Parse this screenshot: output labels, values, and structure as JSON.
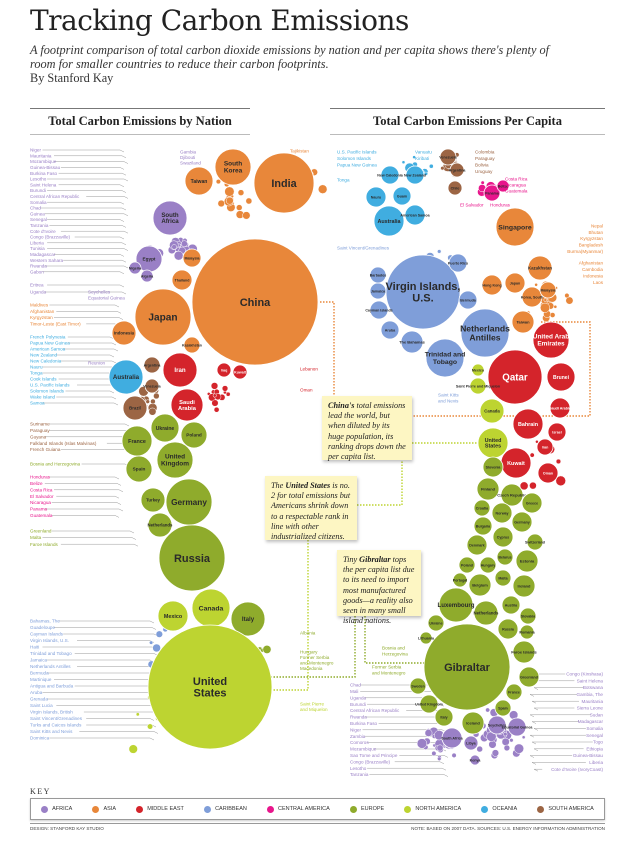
{
  "header": {
    "title": "Tracking Carbon Emissions",
    "subtitle": "A footprint comparison of total carbon dioxide emissions by nation and per capita shows there's plenty of room for smaller countries to reduce their carbon footprints.",
    "byline": "By Stanford Kay"
  },
  "sections": {
    "left_title": "Total Carbon Emissions by Nation",
    "right_title": "Total Carbon Emissions Per Capita"
  },
  "regions": {
    "africa": {
      "label": "Africa",
      "color": "#9a80c6"
    },
    "asia": {
      "label": "Asia",
      "color": "#e8873a"
    },
    "middle_east": {
      "label": "Middle East",
      "color": "#d4242b"
    },
    "caribbean": {
      "label": "Caribbean",
      "color": "#7f9ed9"
    },
    "central_america": {
      "label": "Central America",
      "color": "#e8168c"
    },
    "europe": {
      "label": "Europe",
      "color": "#8fab2c"
    },
    "north_america": {
      "label": "North America",
      "color": "#bdd431"
    },
    "oceania": {
      "label": "Oceania",
      "color": "#40ade0"
    },
    "south_america": {
      "label": "South America",
      "color": "#9c6544"
    }
  },
  "left_circles": [
    {
      "name": "China",
      "region": "asia"
    },
    {
      "name": "India",
      "region": "asia"
    },
    {
      "name": "South Korea",
      "region": "asia"
    },
    {
      "name": "Taiwan",
      "region": "asia"
    },
    {
      "name": "Japan",
      "region": "asia"
    },
    {
      "name": "Indonesia",
      "region": "asia"
    },
    {
      "name": "Thailand",
      "region": "asia"
    },
    {
      "name": "Malaysia",
      "region": "asia"
    },
    {
      "name": "Kazakhstan",
      "region": "asia"
    },
    {
      "name": "South Africa",
      "region": "africa"
    },
    {
      "name": "Egypt",
      "region": "africa"
    },
    {
      "name": "Nigeria",
      "region": "africa"
    },
    {
      "name": "Algeria",
      "region": "africa"
    },
    {
      "name": "Iran",
      "region": "middle_east"
    },
    {
      "name": "Saudi Arabia",
      "region": "middle_east"
    },
    {
      "name": "Iraq",
      "region": "middle_east"
    },
    {
      "name": "Kuwait",
      "region": "middle_east"
    },
    {
      "name": "Australia",
      "region": "oceania"
    },
    {
      "name": "Brazil",
      "region": "south_america"
    },
    {
      "name": "Argentina",
      "region": "south_america"
    },
    {
      "name": "Venezuela",
      "region": "south_america"
    },
    {
      "name": "Ukraine",
      "region": "europe"
    },
    {
      "name": "France",
      "region": "europe"
    },
    {
      "name": "Poland",
      "region": "europe"
    },
    {
      "name": "United Kingdom",
      "region": "europe"
    },
    {
      "name": "Spain",
      "region": "europe"
    },
    {
      "name": "Turkey",
      "region": "europe"
    },
    {
      "name": "Germany",
      "region": "europe"
    },
    {
      "name": "Netherlands",
      "region": "europe"
    },
    {
      "name": "Russia",
      "region": "europe"
    },
    {
      "name": "Italy",
      "region": "europe"
    },
    {
      "name": "Canada",
      "region": "north_america"
    },
    {
      "name": "Mexico",
      "region": "north_america"
    },
    {
      "name": "United States",
      "region": "north_america"
    }
  ],
  "right_circles": [
    {
      "name": "Virgin Islands, U.S.",
      "region": "caribbean"
    },
    {
      "name": "Netherlands Antilles",
      "region": "caribbean"
    },
    {
      "name": "Trinidad and Tobago",
      "region": "caribbean"
    },
    {
      "name": "The Bahamas",
      "region": "caribbean"
    },
    {
      "name": "Aruba",
      "region": "caribbean"
    },
    {
      "name": "Bermuda",
      "region": "caribbean"
    },
    {
      "name": "Puerto Rico",
      "region": "caribbean"
    },
    {
      "name": "Cayman Islands",
      "region": "caribbean"
    },
    {
      "name": "Jamaica",
      "region": "caribbean"
    },
    {
      "name": "Barbados",
      "region": "caribbean"
    },
    {
      "name": "Qatar",
      "region": "middle_east"
    },
    {
      "name": "United Arab Emirates",
      "region": "middle_east"
    },
    {
      "name": "Brunei",
      "region": "middle_east"
    },
    {
      "name": "Saudi Arabia",
      "region": "middle_east"
    },
    {
      "name": "Bahrain",
      "region": "middle_east"
    },
    {
      "name": "Kuwait",
      "region": "middle_east"
    },
    {
      "name": "Israel",
      "region": "middle_east"
    },
    {
      "name": "Oman",
      "region": "middle_east"
    },
    {
      "name": "Iran",
      "region": "middle_east"
    },
    {
      "name": "Singapore",
      "region": "asia"
    },
    {
      "name": "Kazakhstan",
      "region": "asia"
    },
    {
      "name": "Japan",
      "region": "asia"
    },
    {
      "name": "Hong Kong",
      "region": "asia"
    },
    {
      "name": "Taiwan",
      "region": "asia"
    },
    {
      "name": "Korea, South",
      "region": "asia"
    },
    {
      "name": "Malaysia",
      "region": "asia"
    },
    {
      "name": "Australia",
      "region": "oceania"
    },
    {
      "name": "Nauru",
      "region": "oceania"
    },
    {
      "name": "Guam",
      "region": "oceania"
    },
    {
      "name": "New Caledonia",
      "region": "oceania"
    },
    {
      "name": "New Zealand",
      "region": "oceania"
    },
    {
      "name": "American Samoa",
      "region": "oceania"
    },
    {
      "name": "Venezuela",
      "region": "south_america"
    },
    {
      "name": "Chile",
      "region": "south_america"
    },
    {
      "name": "Argentina",
      "region": "south_america"
    },
    {
      "name": "Panama",
      "region": "central_america"
    },
    {
      "name": "Belize",
      "region": "central_america"
    },
    {
      "name": "Canada",
      "region": "north_america"
    },
    {
      "name": "United States",
      "region": "north_america"
    },
    {
      "name": "Saint Pierre and Miquelon",
      "region": "north_america"
    },
    {
      "name": "Mexico",
      "region": "north_america"
    },
    {
      "name": "Gibraltar",
      "region": "europe"
    },
    {
      "name": "Luxembourg",
      "region": "europe"
    },
    {
      "name": "Slovenia",
      "region": "europe"
    },
    {
      "name": "Finland",
      "region": "europe"
    },
    {
      "name": "Czech Republic",
      "region": "europe"
    },
    {
      "name": "Greece",
      "region": "europe"
    },
    {
      "name": "Norway",
      "region": "europe"
    },
    {
      "name": "Croatia",
      "region": "europe"
    },
    {
      "name": "Germany",
      "region": "europe"
    },
    {
      "name": "Bulgaria",
      "region": "europe"
    },
    {
      "name": "Cyprus",
      "region": "europe"
    },
    {
      "name": "Denmark",
      "region": "europe"
    },
    {
      "name": "Switzerland",
      "region": "europe"
    },
    {
      "name": "Estonia",
      "region": "europe"
    },
    {
      "name": "Belarus",
      "region": "europe"
    },
    {
      "name": "Poland",
      "region": "europe"
    },
    {
      "name": "Hungary",
      "region": "europe"
    },
    {
      "name": "Portugal",
      "region": "europe"
    },
    {
      "name": "Belgium",
      "region": "europe"
    },
    {
      "name": "Malta",
      "region": "europe"
    },
    {
      "name": "Ireland",
      "region": "europe"
    },
    {
      "name": "Netherlands",
      "region": "europe"
    },
    {
      "name": "Austria",
      "region": "europe"
    },
    {
      "name": "Slovakia",
      "region": "europe"
    },
    {
      "name": "Russia",
      "region": "europe"
    },
    {
      "name": "Romania",
      "region": "europe"
    },
    {
      "name": "Ukraine",
      "region": "europe"
    },
    {
      "name": "Faroe Islands",
      "region": "europe"
    },
    {
      "name": "Greenland",
      "region": "europe"
    },
    {
      "name": "Sweden",
      "region": "europe"
    },
    {
      "name": "Lithuania",
      "region": "europe"
    },
    {
      "name": "France",
      "region": "europe"
    },
    {
      "name": "Spain",
      "region": "europe"
    },
    {
      "name": "United Kingdom",
      "region": "europe"
    },
    {
      "name": "Italy",
      "region": "europe"
    },
    {
      "name": "Iceland",
      "region": "europe"
    },
    {
      "name": "South Africa",
      "region": "africa"
    },
    {
      "name": "Seychelles",
      "region": "africa"
    },
    {
      "name": "Equatorial Guinea",
      "region": "africa"
    },
    {
      "name": "Libya",
      "region": "africa"
    },
    {
      "name": "Kenya",
      "region": "africa"
    }
  ],
  "label_lists": [
    {
      "region": "africa",
      "items": [
        "Niger",
        "Mauritania",
        "Mozambique",
        "Guinea-Bissau",
        "Burkina Faso",
        "Lesotho",
        "Saint Helena",
        "Burundi",
        "Central African Republic",
        "Somalia",
        "Chad",
        "Guinea",
        "Senegal",
        "Tanzania",
        "Cote d'Ivoire",
        "Congo (Brazzaville)",
        "Liberia",
        "Tunisia",
        "Madagascar",
        "Western Sahara",
        "Rwanda",
        "Gabon"
      ]
    },
    {
      "region": "africa",
      "items": [
        "Eritrea",
        "Uganda"
      ]
    },
    {
      "region": "asia",
      "items": [
        "Maldives",
        "Afghanistan",
        "Kyrgyzstan",
        "Timor-Leste (East Timor)"
      ]
    },
    {
      "region": "oceania",
      "items": [
        "French Polynesia",
        "Papua New Guinea",
        "American Samoa",
        "New Zealand",
        "New Caledonia",
        "Nauru",
        "Tonga",
        "Cook Islands",
        "U.S. Pacific Islands",
        "Solomon Islands",
        "Wake Island",
        "Samoa"
      ]
    },
    {
      "region": "south_america",
      "items": [
        "Suriname",
        "Paraguay",
        "Guyana",
        "Falkland Islands (Islas Malvinas)",
        "French Guiana"
      ]
    },
    {
      "region": "europe",
      "items": [
        "Bosnia and Herzegovina"
      ]
    },
    {
      "region": "central_america",
      "items": [
        "Honduras",
        "Belize",
        "Costa Rica",
        "El Salvador",
        "Nicaragua",
        "Panama",
        "Guatemala"
      ]
    },
    {
      "region": "europe",
      "items": [
        "Greenland",
        "Malta",
        "Faroe Islands"
      ]
    },
    {
      "region": "caribbean",
      "items": [
        "Bahamas, The",
        "Guadeloupe",
        "Cayman Islands",
        "Virgin Islands, U.S.",
        "Haiti",
        "Trinidad and Tobago",
        "Jamaica",
        "Netherlands Antilles",
        "Bermuda",
        "Martinique",
        "Antigua and Barbuda",
        "Aruba",
        "Grenada",
        "Saint Lucia",
        "Virgin Islands, British",
        "Saint Vincent/Grenadines",
        "Turks and Caicos Islands",
        "Saint Kitts and Nevis",
        "Dominica"
      ]
    },
    {
      "region": "africa",
      "items": [
        "Gambia",
        "Djibouti",
        "Swaziland"
      ]
    },
    {
      "region": "africa",
      "items": [
        "Seychelles",
        "Equatorial Guinea"
      ]
    },
    {
      "region": "africa",
      "items": [
        "Reunion"
      ]
    },
    {
      "region": "asia",
      "items": [
        "Tajikistan"
      ]
    },
    {
      "region": "middle_east",
      "items": [
        "Lebanon"
      ]
    },
    {
      "region": "middle_east",
      "items": [
        "Oman"
      ]
    },
    {
      "region": "europe",
      "items": [
        "Albania"
      ]
    },
    {
      "region": "europe",
      "items": [
        "Hungary",
        "Former Serbia",
        "and Montenegro",
        "Macedonia"
      ]
    },
    {
      "region": "north_america",
      "items": [
        "Saint Pierre",
        "and Miquelon"
      ]
    },
    {
      "region": "oceania",
      "items": [
        "U.S. Pacific Islands",
        "Solomon Islands",
        "Papua New Guinea"
      ]
    },
    {
      "region": "oceania",
      "items": [
        "Tonga"
      ]
    },
    {
      "region": "oceania",
      "items": [
        "Vanuatu",
        "Kiribati"
      ]
    },
    {
      "region": "south_america",
      "items": [
        "Colombia",
        "Paraguay",
        "Bolivia",
        "Uruguay"
      ]
    },
    {
      "region": "central_america",
      "items": [
        "Costa Rica",
        "Nicaragua",
        "Guatemala"
      ]
    },
    {
      "region": "central_america",
      "items": [
        "El Salvador"
      ]
    },
    {
      "region": "central_america",
      "items": [
        "Honduras"
      ]
    },
    {
      "region": "caribbean",
      "items": [
        "Saint Vincent/Grenadines"
      ]
    },
    {
      "region": "asia",
      "items": [
        "Nepal",
        "Bhutan",
        "Kyrgyzstan",
        "Bangladesh",
        "Burma(Myanmar)"
      ]
    },
    {
      "region": "asia",
      "items": [
        "Afghanistan",
        "Cambodia",
        "Indonesia",
        "Laos"
      ]
    },
    {
      "region": "caribbean",
      "items": [
        "Saint Kitts",
        "and Nevis"
      ]
    },
    {
      "region": "europe",
      "items": [
        "Bosnia and",
        "Herzegovina"
      ]
    },
    {
      "region": "europe",
      "items": [
        "Former Serbia",
        "and Montenegro"
      ]
    },
    {
      "region": "africa",
      "items": [
        "Congo (Kinshasa)",
        "Saint Helena",
        "Botswana",
        "Gambia, The",
        "Mauritania",
        "Sierra Leone",
        "Sudan",
        "Madagascar",
        "Somalia",
        "Senegal",
        "Togo",
        "Ethiopia",
        "Guinea-Bissau",
        "Liberia",
        "Cote d'Ivoire (IvoryCoast)"
      ]
    },
    {
      "region": "africa",
      "items": [
        "Chad",
        "Mali",
        "Uganda",
        "Burundi",
        "Central African Republic",
        "Rwanda",
        "Burkina Faso",
        "Niger",
        "Zambia",
        "Comoros",
        "Mozambique",
        "Sao Tome and Principe",
        "Congo (Brazzaville)",
        "Lesotho",
        "Tanzania"
      ]
    }
  ],
  "annotations": {
    "china": {
      "pre": "",
      "bold": "China's",
      "post": " total emissions lead the world, but when diluted by its huge population, its ranking drops down the per capita list."
    },
    "us": {
      "pre": "The ",
      "bold": "United States",
      "post": " is no. 2 for total emissions but Americans shrink down to a respectable rank in line with other industrialized citizens."
    },
    "gibraltar": {
      "pre": "Tiny ",
      "bold": "Gibraltar",
      "post": " tops the per capita list due to its need to import most manufactured goods—a reality also seen in many small island nations."
    }
  },
  "key": {
    "title": "KEY",
    "order": [
      "africa",
      "asia",
      "middle_east",
      "caribbean",
      "central_america",
      "europe",
      "north_america",
      "oceania",
      "south_america"
    ]
  },
  "footer": {
    "credit": "Design: Stanford Kay Studio",
    "note": "Note: Based on 2007 data. Sources: U.S. Energy Information Administration"
  }
}
